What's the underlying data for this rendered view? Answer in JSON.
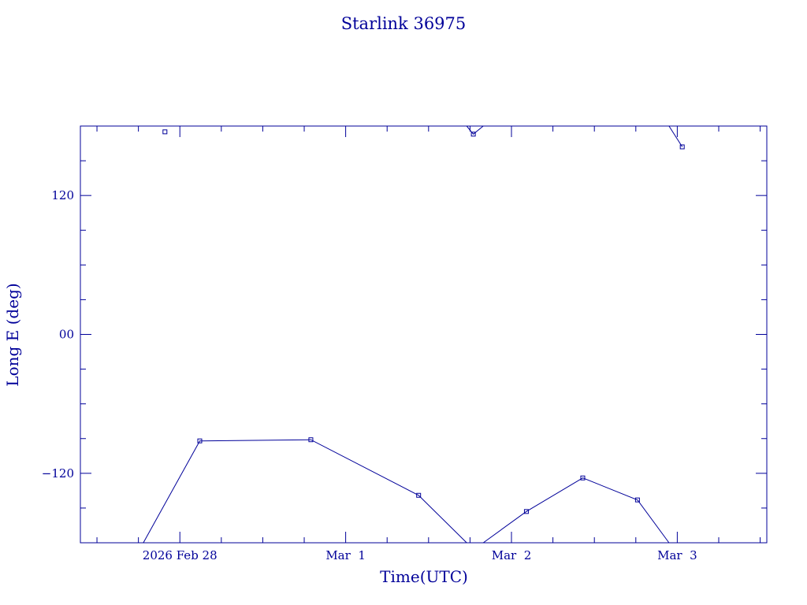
{
  "chart_data": {
    "type": "line",
    "title": "Starlink 36975",
    "xlabel": "Time(UTC)",
    "ylabel": "Long E (deg)",
    "color": "#000099",
    "x_tick_labels": [
      {
        "label": "2026 Feb 28",
        "day": 0
      },
      {
        "label": "Mar  1",
        "day": 1
      },
      {
        "label": "Mar  2",
        "day": 2
      },
      {
        "label": "Mar  3",
        "day": 3
      }
    ],
    "y_tick_labels": [
      {
        "label": "120",
        "value": 120
      },
      {
        "label": "00",
        "value": 0
      },
      {
        "label": "−120",
        "value": -120
      }
    ],
    "xlim_days": [
      -0.6,
      3.54
    ],
    "ylim": [
      -180,
      180
    ],
    "y_minor_step": 30,
    "x_minor_step_days": 0.25,
    "points": [
      {
        "t": -0.09,
        "lon": 175
      },
      {
        "t": 0.12,
        "lon": -92
      },
      {
        "t": 0.79,
        "lon": -91
      },
      {
        "t": 1.44,
        "lon": -139
      },
      {
        "t": 1.77,
        "lon": 173
      },
      {
        "t": 2.09,
        "lon": -153
      },
      {
        "t": 2.43,
        "lon": -124
      },
      {
        "t": 2.76,
        "lon": -143
      },
      {
        "t": 3.03,
        "lon": 162
      }
    ],
    "segments": [
      [
        [
          -0.09,
          175
        ]
      ],
      [
        [
          -0.22,
          -180
        ],
        [
          0.12,
          -92
        ],
        [
          0.79,
          -91
        ],
        [
          1.44,
          -139
        ],
        [
          1.73,
          -180
        ]
      ],
      [
        [
          1.73,
          180
        ],
        [
          1.77,
          173
        ],
        [
          1.83,
          180
        ]
      ],
      [
        [
          1.83,
          -180
        ],
        [
          2.09,
          -153
        ],
        [
          2.43,
          -124
        ],
        [
          2.76,
          -143
        ],
        [
          2.95,
          -180
        ]
      ],
      [
        [
          2.95,
          180
        ],
        [
          3.03,
          162
        ]
      ]
    ]
  }
}
